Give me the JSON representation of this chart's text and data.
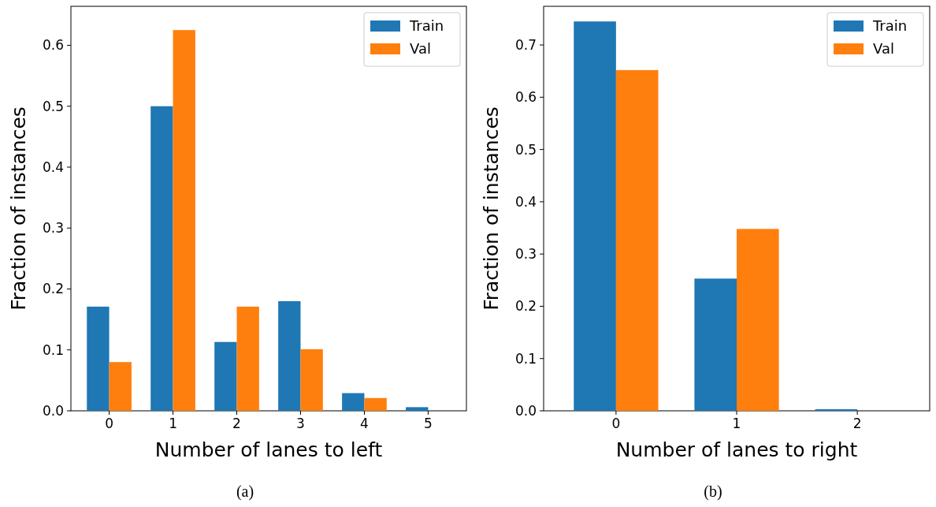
{
  "chart_data": [
    {
      "type": "bar",
      "xlabel": "Number of lanes to left",
      "ylabel": "Fraction of instances",
      "categories": [
        "0",
        "1",
        "2",
        "3",
        "4",
        "5"
      ],
      "series": [
        {
          "name": "Train",
          "color": "#1f77b4",
          "values": [
            0.171,
            0.5,
            0.113,
            0.18,
            0.029,
            0.006
          ]
        },
        {
          "name": "Val",
          "color": "#ff7f0e",
          "values": [
            0.08,
            0.625,
            0.171,
            0.101,
            0.021,
            0
          ]
        }
      ],
      "ylim": [
        0,
        0.664
      ],
      "yticks": [
        {
          "value": 0,
          "label": "0.0"
        },
        0.1,
        0.2,
        0.3,
        0.4,
        0.5,
        0.6
      ],
      "legend": "top right",
      "grid": false,
      "annotations": [
        "(a)"
      ]
    },
    {
      "type": "bar",
      "xlabel": "Number of lanes to right",
      "ylabel": "Fraction of instances",
      "categories": [
        "0",
        "1",
        "2"
      ],
      "series": [
        {
          "name": "Train",
          "color": "#1f77b4",
          "values": [
            0.745,
            0.253,
            0.003
          ]
        },
        {
          "name": "Val",
          "color": "#ff7f0e",
          "values": [
            0.652,
            0.348,
            0
          ]
        }
      ],
      "ylim": [
        0,
        0.774
      ],
      "yticks": [
        {
          "value": 0,
          "label": "0.0"
        },
        0.1,
        0.2,
        0.3,
        0.4,
        0.5,
        0.6,
        0.7
      ],
      "legend": "top right",
      "grid": false,
      "annotations": [
        "(b)"
      ]
    }
  ]
}
